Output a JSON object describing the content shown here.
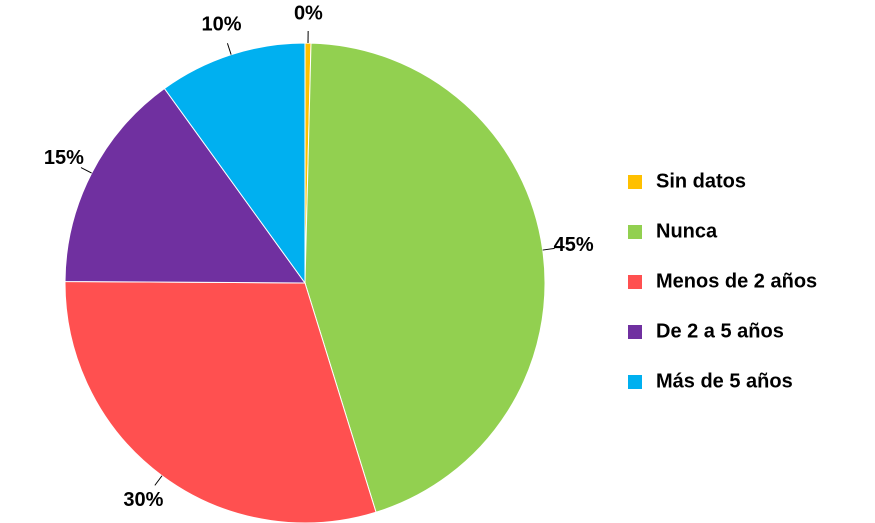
{
  "chart_data": {
    "type": "pie",
    "categories": [
      "Sin datos",
      "Nunca",
      "Menos de 2 años",
      "De 2 a 5 años",
      "Más de 5 años"
    ],
    "values": [
      0.4,
      45,
      30,
      15,
      10
    ],
    "value_labels": [
      "0%",
      "45%",
      "30%",
      "15%",
      "10%"
    ],
    "colors": [
      "#ffc000",
      "#92d050",
      "#ff5050",
      "#7030a0",
      "#00b0f0"
    ],
    "legend": "right"
  }
}
